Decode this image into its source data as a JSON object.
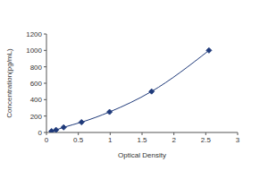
{
  "chart_data": {
    "type": "line",
    "x_label": "Optical Density",
    "y_label": "Concentration(pg/mL)",
    "x": [
      0.08,
      0.15,
      0.27,
      0.55,
      0.99,
      1.65,
      2.55
    ],
    "values": [
      15.6,
      31.2,
      62.5,
      125,
      250,
      500,
      1000
    ],
    "color": "#1f3a7a",
    "marker": "diamond",
    "line_style": "solid",
    "xlim": [
      0,
      3
    ],
    "ylim": [
      0,
      1200
    ],
    "xticks": [
      0,
      0.5,
      1,
      1.5,
      2,
      2.5,
      3
    ],
    "yticks": [
      0,
      200,
      400,
      600,
      800,
      1000,
      1200
    ],
    "grid": false
  }
}
